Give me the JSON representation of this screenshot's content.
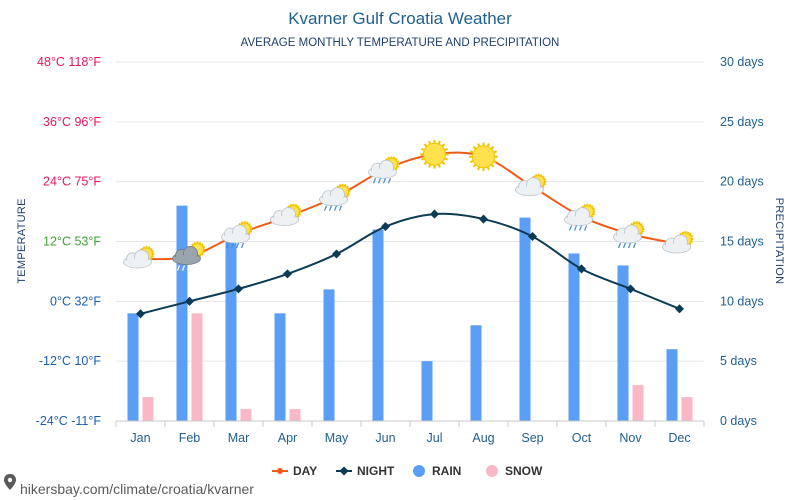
{
  "chart_data": {
    "type": "bar+line",
    "title": "Kvarner Gulf Croatia Weather",
    "subtitle": "AVERAGE MONTHLY TEMPERATURE AND PRECIPITATION",
    "categories": [
      "Jan",
      "Feb",
      "Mar",
      "Apr",
      "May",
      "Jun",
      "Jul",
      "Aug",
      "Sep",
      "Oct",
      "Nov",
      "Dec"
    ],
    "left_axis": {
      "title": "TEMPERATURE",
      "range_c": [
        -24,
        48
      ],
      "ticks": [
        {
          "value": 48,
          "label": "48°C 118°F",
          "color": "#e8175d"
        },
        {
          "value": 36,
          "label": "36°C 96°F",
          "color": "#e8175d"
        },
        {
          "value": 24,
          "label": "24°C 75°F",
          "color": "#e8175d"
        },
        {
          "value": 12,
          "label": "12°C 53°F",
          "color": "#3fa535"
        },
        {
          "value": 0,
          "label": "0°C 32°F",
          "color": "#1a5fb4"
        },
        {
          "value": -12,
          "label": "-12°C 10°F",
          "color": "#1a5fb4"
        },
        {
          "value": -24,
          "label": "-24°C -11°F",
          "color": "#1a5fb4"
        }
      ]
    },
    "right_axis": {
      "title": "PRECIPITATION",
      "range_days": [
        0,
        30
      ],
      "ticks": [
        {
          "value": 30,
          "label": "30 days"
        },
        {
          "value": 25,
          "label": "25 days"
        },
        {
          "value": 20,
          "label": "20 days"
        },
        {
          "value": 15,
          "label": "15 days"
        },
        {
          "value": 10,
          "label": "10 days"
        },
        {
          "value": 5,
          "label": "5 days"
        },
        {
          "value": 0,
          "label": "0 days"
        }
      ]
    },
    "series": [
      {
        "name": "DAY",
        "kind": "line",
        "axis": "temperature",
        "color": "#f05a1a",
        "values": [
          8.5,
          9,
          13.5,
          17,
          21,
          26.5,
          29.5,
          29,
          23,
          17,
          13.5,
          11.5
        ]
      },
      {
        "name": "NIGHT",
        "kind": "line",
        "axis": "temperature",
        "color": "#0d3b55",
        "values": [
          -2.5,
          0,
          2.5,
          5.5,
          9.5,
          15,
          17.5,
          16.5,
          13,
          6.5,
          2.5,
          -1.5
        ]
      },
      {
        "name": "RAIN",
        "kind": "bar",
        "axis": "precipitation",
        "color": "#5b9ef5",
        "values": [
          9,
          18,
          15,
          9,
          11,
          16,
          5,
          8,
          17,
          14,
          13,
          6
        ]
      },
      {
        "name": "SNOW",
        "kind": "bar",
        "axis": "precipitation",
        "color": "#f9b8c8",
        "values": [
          2,
          9,
          1,
          1,
          0,
          0,
          0,
          0,
          0,
          0,
          3,
          2
        ]
      }
    ],
    "weather_icons": [
      "sun-cloud",
      "cloud-snow",
      "sun-cloud-rain",
      "sun-cloud",
      "sun-cloud-rain",
      "sun-cloud-rain",
      "sun",
      "sun",
      "sun-cloud",
      "sun-cloud-rain",
      "sun-cloud-rain",
      "sun-cloud"
    ],
    "legend_position": "bottom-center",
    "colors": {
      "day": "#f05a1a",
      "night": "#0d3b55",
      "rain": "#5b9ef5",
      "snow": "#f9b8c8",
      "grid": "#e6e6e6",
      "title": "#1f5f8e"
    }
  },
  "footer": {
    "pin_icon": "location-pin-icon",
    "source": "hikersbay.com/climate/croatia/kvarner"
  }
}
